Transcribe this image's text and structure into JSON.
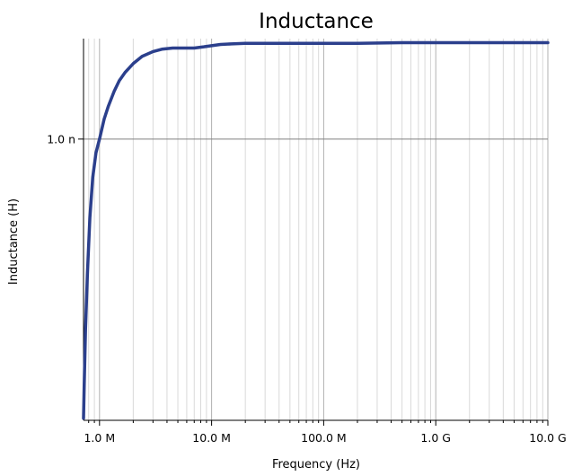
{
  "chart_data": {
    "type": "line",
    "title": "Inductance",
    "xlabel": "Frequency (Hz)",
    "ylabel": "Inductance (H)",
    "x_scale": "log",
    "y_scale": "log",
    "xlim": [
      720000,
      10000000000
    ],
    "ylim": [
      6.6e-10,
      1.16e-09
    ],
    "x_ticks": [
      {
        "value": 1000000,
        "label": "1.0 M"
      },
      {
        "value": 10000000,
        "label": "10.0 M"
      },
      {
        "value": 100000000,
        "label": "100.0 M"
      },
      {
        "value": 1000000000,
        "label": "1.0 G"
      },
      {
        "value": 10000000000,
        "label": "10.0 G"
      }
    ],
    "y_ticks": [
      {
        "value": 1e-09,
        "label": "1.0 n"
      }
    ],
    "grid": true,
    "legend": "none",
    "series": [
      {
        "color": "#2b3f8c",
        "x": [
          720000,
          730000,
          750000,
          780000,
          820000,
          870000,
          930000,
          1000000,
          1100000,
          1200000,
          1350000,
          1500000,
          1700000,
          2000000,
          2400000,
          3000000,
          3600000,
          4500000,
          5500000,
          7000000,
          8500000,
          10000000,
          12000000,
          15000000,
          20000000,
          30000000,
          50000000,
          100000000,
          200000000,
          500000000,
          1000000000,
          2000000000,
          5000000000,
          10000000000
        ],
        "y": [
          6.62e-10,
          6.95e-10,
          7.55e-10,
          8.2e-10,
          8.9e-10,
          9.45e-10,
          9.8e-10,
          1e-09,
          1.03e-09,
          1.05e-09,
          1.073e-09,
          1.09e-09,
          1.104e-09,
          1.118e-09,
          1.13e-09,
          1.138e-09,
          1.142e-09,
          1.144e-09,
          1.144e-09,
          1.144e-09,
          1.146e-09,
          1.148e-09,
          1.15e-09,
          1.151e-09,
          1.152e-09,
          1.152e-09,
          1.152e-09,
          1.152e-09,
          1.152e-09,
          1.153e-09,
          1.153e-09,
          1.153e-09,
          1.153e-09,
          1.153e-09
        ]
      }
    ]
  }
}
